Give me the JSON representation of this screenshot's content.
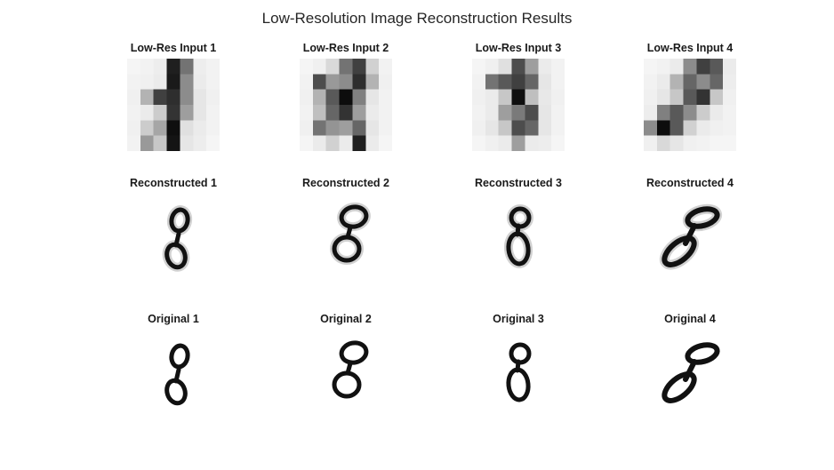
{
  "title": "Low-Resolution Image Reconstruction Results",
  "rows": [
    {
      "kind": "lowres",
      "panels": [
        {
          "title": "Low-Res Input 1",
          "pixels": [
            [
              0.96,
              0.95,
              0.93,
              0.12,
              0.45,
              0.93,
              0.95
            ],
            [
              0.95,
              0.94,
              0.92,
              0.1,
              0.55,
              0.92,
              0.95
            ],
            [
              0.94,
              0.7,
              0.25,
              0.18,
              0.55,
              0.9,
              0.94
            ],
            [
              0.95,
              0.92,
              0.8,
              0.2,
              0.62,
              0.9,
              0.95
            ],
            [
              0.94,
              0.8,
              0.65,
              0.06,
              0.88,
              0.92,
              0.95
            ],
            [
              0.95,
              0.6,
              0.78,
              0.08,
              0.9,
              0.93,
              0.96
            ]
          ]
        },
        {
          "title": "Low-Res Input 2",
          "pixels": [
            [
              0.96,
              0.94,
              0.85,
              0.45,
              0.25,
              0.82,
              0.95
            ],
            [
              0.95,
              0.3,
              0.6,
              0.55,
              0.18,
              0.7,
              0.94
            ],
            [
              0.94,
              0.7,
              0.35,
              0.05,
              0.5,
              0.9,
              0.95
            ],
            [
              0.95,
              0.75,
              0.4,
              0.2,
              0.62,
              0.92,
              0.95
            ],
            [
              0.94,
              0.45,
              0.58,
              0.62,
              0.4,
              0.9,
              0.95
            ],
            [
              0.96,
              0.92,
              0.82,
              0.92,
              0.12,
              0.92,
              0.96
            ]
          ]
        },
        {
          "title": "Low-Res Input 3",
          "pixels": [
            [
              0.96,
              0.94,
              0.88,
              0.3,
              0.62,
              0.92,
              0.95
            ],
            [
              0.95,
              0.45,
              0.35,
              0.25,
              0.4,
              0.9,
              0.95
            ],
            [
              0.94,
              0.92,
              0.78,
              0.06,
              0.75,
              0.91,
              0.94
            ],
            [
              0.95,
              0.92,
              0.62,
              0.48,
              0.3,
              0.9,
              0.95
            ],
            [
              0.94,
              0.9,
              0.78,
              0.3,
              0.4,
              0.9,
              0.95
            ],
            [
              0.96,
              0.94,
              0.92,
              0.62,
              0.92,
              0.93,
              0.96
            ]
          ]
        },
        {
          "title": "Low-Res Input 4",
          "pixels": [
            [
              0.96,
              0.95,
              0.92,
              0.55,
              0.25,
              0.35,
              0.92
            ],
            [
              0.95,
              0.92,
              0.7,
              0.4,
              0.55,
              0.4,
              0.93
            ],
            [
              0.94,
              0.9,
              0.78,
              0.35,
              0.2,
              0.78,
              0.94
            ],
            [
              0.93,
              0.5,
              0.35,
              0.55,
              0.8,
              0.92,
              0.95
            ],
            [
              0.55,
              0.05,
              0.35,
              0.82,
              0.92,
              0.94,
              0.95
            ],
            [
              0.94,
              0.85,
              0.9,
              0.94,
              0.95,
              0.96,
              0.96
            ]
          ]
        }
      ]
    },
    {
      "kind": "digit",
      "panels": [
        {
          "title": "Reconstructed 1",
          "variant": "thin"
        },
        {
          "title": "Reconstructed 2",
          "variant": "round"
        },
        {
          "title": "Reconstructed 3",
          "variant": "tall"
        },
        {
          "title": "Reconstructed 4",
          "variant": "slant"
        }
      ]
    },
    {
      "kind": "digit",
      "panels": [
        {
          "title": "Original 1",
          "variant": "thin"
        },
        {
          "title": "Original 2",
          "variant": "round"
        },
        {
          "title": "Original 3",
          "variant": "tall"
        },
        {
          "title": "Original 4",
          "variant": "slant"
        }
      ]
    }
  ]
}
